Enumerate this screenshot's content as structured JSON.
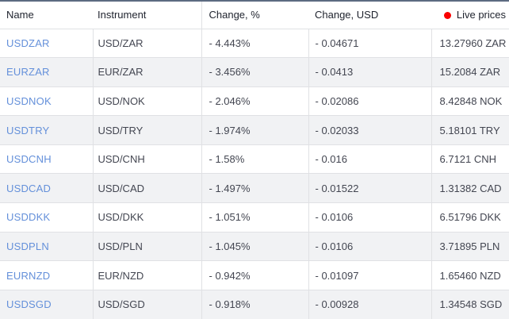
{
  "widget": {
    "title": "live-forex-quotes"
  },
  "table": {
    "columns": [
      {
        "label": "Name"
      },
      {
        "label": "Instrument"
      },
      {
        "label": "Change, %"
      },
      {
        "label": "Change, USD"
      },
      {
        "label": "Live prices"
      }
    ],
    "rows": [
      {
        "name": "USDZAR",
        "instrument": "USD/ZAR",
        "change_pct": "- 4.443%",
        "change_usd": "- 0.04671",
        "live_price": "13.27960 ZAR"
      },
      {
        "name": "EURZAR",
        "instrument": "EUR/ZAR",
        "change_pct": "- 3.456%",
        "change_usd": "- 0.0413",
        "live_price": "15.2084 ZAR"
      },
      {
        "name": "USDNOK",
        "instrument": "USD/NOK",
        "change_pct": "- 2.046%",
        "change_usd": "- 0.02086",
        "live_price": "8.42848 NOK"
      },
      {
        "name": "USDTRY",
        "instrument": "USD/TRY",
        "change_pct": "- 1.974%",
        "change_usd": "- 0.02033",
        "live_price": "5.18101 TRY"
      },
      {
        "name": "USDCNH",
        "instrument": "USD/CNH",
        "change_pct": "- 1.58%",
        "change_usd": "- 0.016",
        "live_price": "6.7121 CNH"
      },
      {
        "name": "USDCAD",
        "instrument": "USD/CAD",
        "change_pct": "- 1.497%",
        "change_usd": "- 0.01522",
        "live_price": "1.31382 CAD"
      },
      {
        "name": "USDDKK",
        "instrument": "USD/DKK",
        "change_pct": "- 1.051%",
        "change_usd": "- 0.0106",
        "live_price": "6.51796 DKK"
      },
      {
        "name": "USDPLN",
        "instrument": "USD/PLN",
        "change_pct": "- 1.045%",
        "change_usd": "- 0.0106",
        "live_price": "3.71895 PLN"
      },
      {
        "name": "EURNZD",
        "instrument": "EUR/NZD",
        "change_pct": "- 0.942%",
        "change_usd": "- 0.01097",
        "live_price": "1.65460 NZD"
      },
      {
        "name": "USDSGD",
        "instrument": "USD/SGD",
        "change_pct": "- 0.918%",
        "change_usd": "- 0.00928",
        "live_price": "1.34548 SGD"
      }
    ]
  },
  "icons": {
    "live_dot": "red-circle"
  },
  "colors": {
    "top_bar": "#5d6b81",
    "link_blue": "#6490da",
    "live_dot_red": "#fa0000",
    "row_alt_bg": "#f1f2f4",
    "border": "#e0e1e4",
    "header_text": "#1e222d",
    "body_text": "#434651"
  }
}
